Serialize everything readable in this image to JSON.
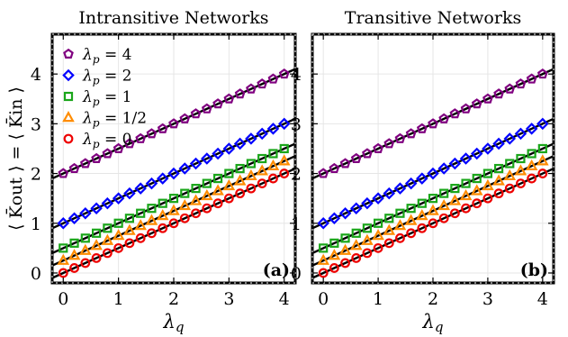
{
  "ylabel": "⟨ K̄out ⟩ = ⟨ K̄in ⟩",
  "colors": {
    "frame": "#000000",
    "fit_line": "#000000",
    "grid": "#e6e6e6",
    "background": "#ffffff"
  },
  "chart_data": [
    {
      "type": "line",
      "title": "Intransitive Networks",
      "panel_label": "(a)",
      "xlabel": "λq",
      "ylabel": "⟨ K̄out ⟩ = ⟨ K̄in ⟩",
      "xlim": [
        -0.2,
        4.2
      ],
      "ylim": [
        -0.2,
        4.8
      ],
      "xticks": [
        0,
        1,
        2,
        3,
        4
      ],
      "yticks": [
        0,
        1,
        2,
        3,
        4
      ],
      "grid": true,
      "legend_position": "top-left",
      "x": [
        0.0,
        0.2,
        0.4,
        0.6,
        0.8,
        1.0,
        1.2,
        1.4,
        1.6,
        1.8,
        2.0,
        2.2,
        2.4,
        2.6,
        2.8,
        3.0,
        3.2,
        3.4,
        3.6,
        3.8,
        4.0
      ],
      "series": [
        {
          "name": "λp = 4",
          "marker": "pentagon",
          "color": "#800080",
          "values": [
            2.0,
            2.1,
            2.2,
            2.3,
            2.4,
            2.5,
            2.6,
            2.7,
            2.8,
            2.9,
            3.0,
            3.1,
            3.2,
            3.3,
            3.4,
            3.5,
            3.6,
            3.7,
            3.8,
            3.9,
            4.0
          ]
        },
        {
          "name": "λp = 2",
          "marker": "diamond",
          "color": "#0000ff",
          "values": [
            1.0,
            1.1,
            1.2,
            1.3,
            1.4,
            1.5,
            1.6,
            1.7,
            1.8,
            1.9,
            2.0,
            2.1,
            2.2,
            2.3,
            2.4,
            2.5,
            2.6,
            2.7,
            2.8,
            2.9,
            3.0
          ]
        },
        {
          "name": "λp = 1",
          "marker": "square",
          "color": "#1aa61a",
          "values": [
            0.5,
            0.6,
            0.7,
            0.8,
            0.9,
            1.0,
            1.1,
            1.2,
            1.3,
            1.4,
            1.5,
            1.6,
            1.7,
            1.8,
            1.9,
            2.0,
            2.1,
            2.2,
            2.3,
            2.4,
            2.5
          ]
        },
        {
          "name": "λp = 1/2",
          "marker": "triangle",
          "color": "#ff8c00",
          "values": [
            0.25,
            0.35,
            0.45,
            0.55,
            0.65,
            0.75,
            0.85,
            0.95,
            1.05,
            1.15,
            1.25,
            1.35,
            1.45,
            1.55,
            1.65,
            1.75,
            1.85,
            1.95,
            2.05,
            2.15,
            2.25
          ]
        },
        {
          "name": "λp = 0",
          "marker": "circle",
          "color": "#ee0000",
          "values": [
            0.0,
            0.1,
            0.2,
            0.3,
            0.4,
            0.5,
            0.6,
            0.7,
            0.8,
            0.9,
            1.0,
            1.1,
            1.2,
            1.3,
            1.4,
            1.5,
            1.6,
            1.7,
            1.8,
            1.9,
            2.0
          ]
        }
      ]
    },
    {
      "type": "line",
      "title": "Transitive Networks",
      "panel_label": "(b)",
      "xlabel": "λq",
      "ylabel": "",
      "xlim": [
        -0.2,
        4.2
      ],
      "ylim": [
        -0.2,
        4.8
      ],
      "xticks": [
        0,
        1,
        2,
        3,
        4
      ],
      "yticks": [
        0,
        1,
        2,
        3,
        4
      ],
      "grid": true,
      "legend_position": "",
      "x": [
        0.0,
        0.2,
        0.4,
        0.6,
        0.8,
        1.0,
        1.2,
        1.4,
        1.6,
        1.8,
        2.0,
        2.2,
        2.4,
        2.6,
        2.8,
        3.0,
        3.2,
        3.4,
        3.6,
        3.8,
        4.0
      ],
      "series": [
        {
          "name": "λp = 4",
          "marker": "pentagon",
          "color": "#800080",
          "values": [
            2.0,
            2.1,
            2.2,
            2.3,
            2.4,
            2.5,
            2.6,
            2.7,
            2.8,
            2.9,
            3.0,
            3.1,
            3.2,
            3.3,
            3.4,
            3.5,
            3.6,
            3.7,
            3.8,
            3.9,
            4.0
          ]
        },
        {
          "name": "λp = 2",
          "marker": "diamond",
          "color": "#0000ff",
          "values": [
            1.0,
            1.1,
            1.2,
            1.3,
            1.4,
            1.5,
            1.6,
            1.7,
            1.8,
            1.9,
            2.0,
            2.1,
            2.2,
            2.3,
            2.4,
            2.5,
            2.6,
            2.7,
            2.8,
            2.9,
            3.0
          ]
        },
        {
          "name": "λp = 1",
          "marker": "square",
          "color": "#1aa61a",
          "values": [
            0.5,
            0.6,
            0.7,
            0.8,
            0.9,
            1.0,
            1.1,
            1.2,
            1.3,
            1.4,
            1.5,
            1.6,
            1.7,
            1.8,
            1.9,
            2.0,
            2.1,
            2.2,
            2.3,
            2.4,
            2.5
          ]
        },
        {
          "name": "λp = 1/2",
          "marker": "triangle",
          "color": "#ff8c00",
          "values": [
            0.25,
            0.35,
            0.45,
            0.55,
            0.65,
            0.75,
            0.85,
            0.95,
            1.05,
            1.15,
            1.25,
            1.35,
            1.45,
            1.55,
            1.65,
            1.75,
            1.85,
            1.95,
            2.05,
            2.15,
            2.25
          ]
        },
        {
          "name": "λp = 0",
          "marker": "circle",
          "color": "#ee0000",
          "values": [
            0.0,
            0.1,
            0.2,
            0.3,
            0.4,
            0.5,
            0.6,
            0.7,
            0.8,
            0.9,
            1.0,
            1.1,
            1.2,
            1.3,
            1.4,
            1.5,
            1.6,
            1.7,
            1.8,
            1.9,
            2.0
          ]
        }
      ]
    }
  ]
}
